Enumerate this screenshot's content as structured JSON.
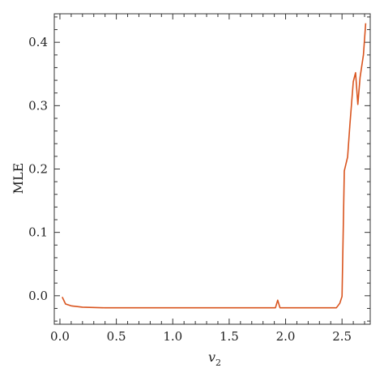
{
  "chart_data": {
    "type": "line",
    "xlabel": "v",
    "xlabel_subscript": "2",
    "ylabel": "MLE",
    "xlim": [
      -0.05,
      2.75
    ],
    "ylim": [
      -0.045,
      0.445
    ],
    "xticks": [
      0.0,
      0.5,
      1.0,
      1.5,
      2.0,
      2.5
    ],
    "xtick_labels": [
      "0.0",
      "0.5",
      "1.0",
      "1.5",
      "2.0",
      "2.5"
    ],
    "yticks": [
      0.0,
      0.1,
      0.2,
      0.3,
      0.4
    ],
    "ytick_labels": [
      "0.0",
      "0.1",
      "0.2",
      "0.3",
      "0.4"
    ],
    "grid": false,
    "line_color": "#d9541e",
    "series": [
      {
        "x": [
          0.02,
          0.05,
          0.1,
          0.2,
          0.4,
          0.6,
          0.8,
          1.0,
          1.2,
          1.4,
          1.6,
          1.8,
          1.91,
          1.93,
          1.95,
          2.0,
          2.1,
          2.2,
          2.3,
          2.4,
          2.45,
          2.48,
          2.5,
          2.52,
          2.55,
          2.57,
          2.6,
          2.62,
          2.64,
          2.66,
          2.69,
          2.71
        ],
        "y": [
          -0.002,
          -0.013,
          -0.016,
          -0.018,
          -0.019,
          -0.019,
          -0.019,
          -0.019,
          -0.019,
          -0.019,
          -0.019,
          -0.019,
          -0.019,
          -0.007,
          -0.019,
          -0.019,
          -0.019,
          -0.019,
          -0.019,
          -0.019,
          -0.019,
          -0.012,
          -0.001,
          0.197,
          0.219,
          0.27,
          0.338,
          0.352,
          0.302,
          0.345,
          0.38,
          0.43
        ]
      }
    ]
  }
}
